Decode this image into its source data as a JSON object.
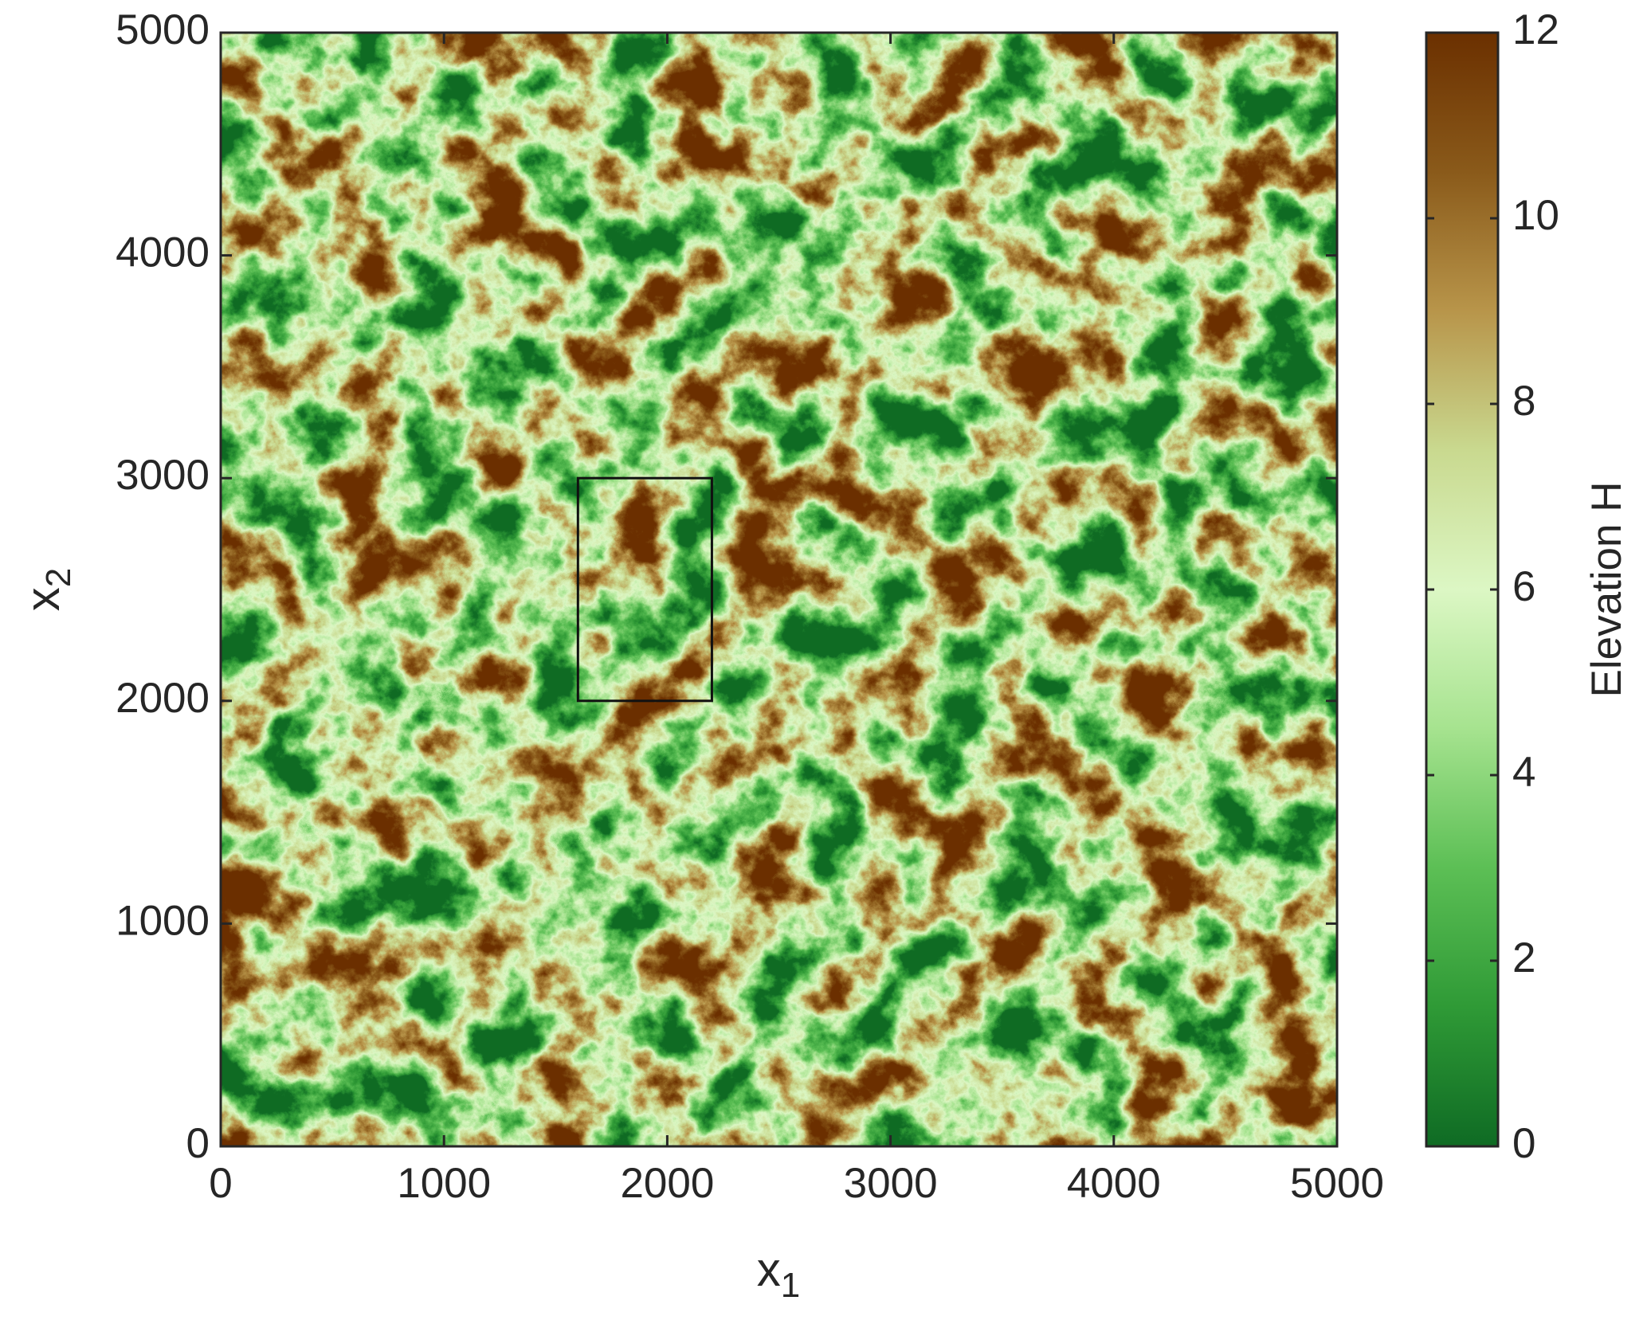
{
  "chart_data": {
    "type": "heatmap",
    "xlabel": "x",
    "xlabel_subscript": "1",
    "ylabel": "x",
    "ylabel_subscript": "2",
    "xlim": [
      0,
      5000
    ],
    "ylim": [
      0,
      5000
    ],
    "xticks": [
      0,
      1000,
      2000,
      3000,
      4000,
      5000
    ],
    "yticks": [
      0,
      1000,
      2000,
      3000,
      4000,
      5000
    ],
    "colorbar": {
      "label": "Elevation H",
      "lim": [
        0,
        12
      ],
      "ticks": [
        0,
        2,
        4,
        6,
        8,
        10,
        12
      ],
      "colors": [
        "#0f6b24",
        "#2f9a36",
        "#5cbf55",
        "#a6e38f",
        "#dcf7c4",
        "#c9d98f",
        "#b8954a",
        "#8a5a1a",
        "#6b3000"
      ]
    },
    "annotations": [
      {
        "type": "rect",
        "x": [
          1600,
          2200
        ],
        "y": [
          2000,
          3000
        ]
      }
    ]
  }
}
